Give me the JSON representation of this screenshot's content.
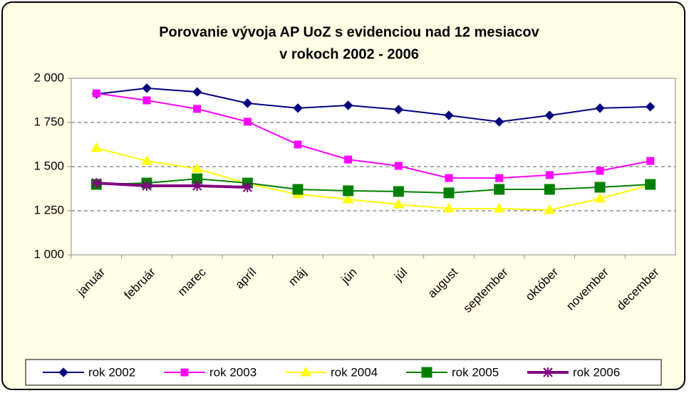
{
  "chart_data": {
    "type": "line",
    "title": [
      "Porovanie vývoja AP UoZ s evidenciou nad 12 mesiacov",
      "v rokoch 2002 - 2006"
    ],
    "categories": [
      "január",
      "február",
      "marec",
      "apríl",
      "máj",
      "jún",
      "júl",
      "august",
      "september",
      "október",
      "november",
      "december"
    ],
    "series": [
      {
        "name": "rok 2002",
        "color": "#000080",
        "marker": "diamond",
        "values": [
          1911,
          1944,
          1923,
          1859,
          1831,
          1847,
          1823,
          1790,
          1754,
          1790,
          1831,
          1839
        ]
      },
      {
        "name": "rok 2003",
        "color": "#FF00FF",
        "marker": "square",
        "values": [
          1915,
          1875,
          1827,
          1754,
          1625,
          1540,
          1504,
          1435,
          1435,
          1452,
          1476,
          1532
        ]
      },
      {
        "name": "rok 2004",
        "color": "#FFFF00",
        "marker": "triangle",
        "values": [
          1605,
          1532,
          1488,
          1403,
          1343,
          1315,
          1286,
          1262,
          1262,
          1254,
          1319,
          1395
        ]
      },
      {
        "name": "rok 2005",
        "color": "#008000",
        "marker": "square-large",
        "values": [
          1399,
          1407,
          1431,
          1407,
          1371,
          1363,
          1359,
          1351,
          1371,
          1371,
          1383,
          1399
        ]
      },
      {
        "name": "rok 2006",
        "color": "#800080",
        "marker": "star",
        "values": [
          1407,
          1391,
          1391,
          1383,
          null,
          null,
          null,
          null,
          null,
          null,
          null,
          null
        ]
      }
    ],
    "ylim": [
      1000,
      2000
    ],
    "yticks": [
      {
        "value": 1000,
        "label": "1 000"
      },
      {
        "value": 1250,
        "label": "1 250"
      },
      {
        "value": 1500,
        "label": "1 500"
      },
      {
        "value": 1750,
        "label": "1 750"
      },
      {
        "value": 2000,
        "label": "2 000"
      }
    ],
    "grid": true,
    "legend": "bottom"
  }
}
